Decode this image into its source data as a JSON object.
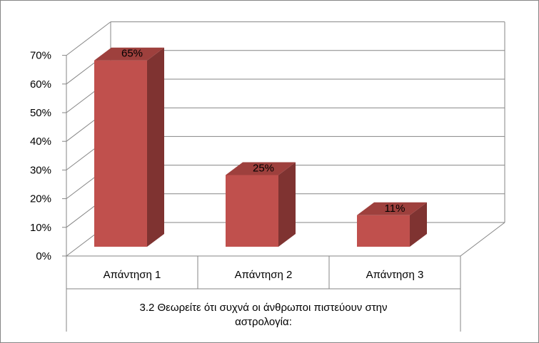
{
  "chart_data": {
    "type": "bar",
    "title": "",
    "xlabel": "3.2 Θεωρείτε ότι συχνά οι άνθρωποι πιστεύουν στην αστρολογία:",
    "xlabel_lines": [
      "3.2 Θεωρείτε ότι συχνά  οι άνθρωποι πιστεύουν στην",
      "αστρολογία:"
    ],
    "ylabel": "",
    "categories": [
      "Απάντηση 1",
      "Απάντηση 2",
      "Απάντηση 3"
    ],
    "values": [
      65,
      25,
      11
    ],
    "data_labels": [
      "65%",
      "25%",
      "11%"
    ],
    "y_ticks": [
      "0%",
      "10%",
      "20%",
      "30%",
      "40%",
      "50%",
      "60%",
      "70%"
    ],
    "ylim": [
      0,
      70
    ],
    "grid": true,
    "three_d": true,
    "legend": "none",
    "bar_color": "#C0504D",
    "bar_side_color": "#7F3331",
    "bar_top_color": "#9E403D"
  }
}
